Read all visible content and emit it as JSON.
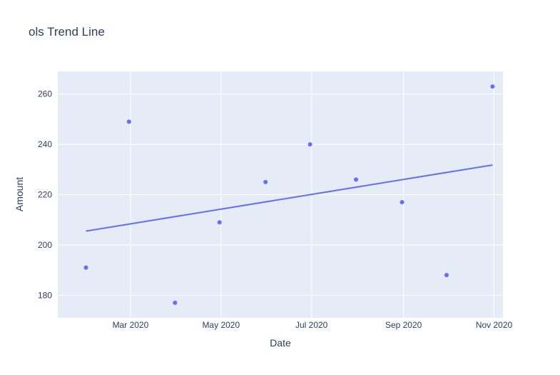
{
  "chart_data": {
    "type": "scatter",
    "title": "ols Trend Line",
    "xlabel": "Date",
    "ylabel": "Amount",
    "x_tick_labels": [
      "Mar 2020",
      "May 2020",
      "Jul 2020",
      "Sep 2020",
      "Nov 2020"
    ],
    "x_ticks": [
      "2020-03-01",
      "2020-05-01",
      "2020-07-01",
      "2020-09-01",
      "2020-11-01"
    ],
    "y_ticks": [
      180,
      200,
      220,
      240,
      260
    ],
    "xlim": [
      "2020-01-12",
      "2020-11-07"
    ],
    "ylim": [
      171,
      269
    ],
    "grid": true,
    "series": [
      {
        "mode": "markers",
        "x": [
          "2020-01-31",
          "2020-02-29",
          "2020-03-31",
          "2020-04-30",
          "2020-05-31",
          "2020-06-30",
          "2020-07-31",
          "2020-08-31",
          "2020-09-30",
          "2020-10-31"
        ],
        "y": [
          191,
          249,
          177,
          209,
          225,
          240,
          226,
          217,
          188,
          263
        ],
        "color": "#636efa"
      },
      {
        "mode": "lines",
        "x": [
          "2020-01-31",
          "2020-10-31"
        ],
        "y": [
          205.5,
          231.8
        ],
        "color": "#636efa"
      }
    ],
    "colors": {
      "plot_bg": "#e5ecf6",
      "grid": "#ffffff",
      "text": "#2a3f5f",
      "marker": "#636efa"
    }
  }
}
